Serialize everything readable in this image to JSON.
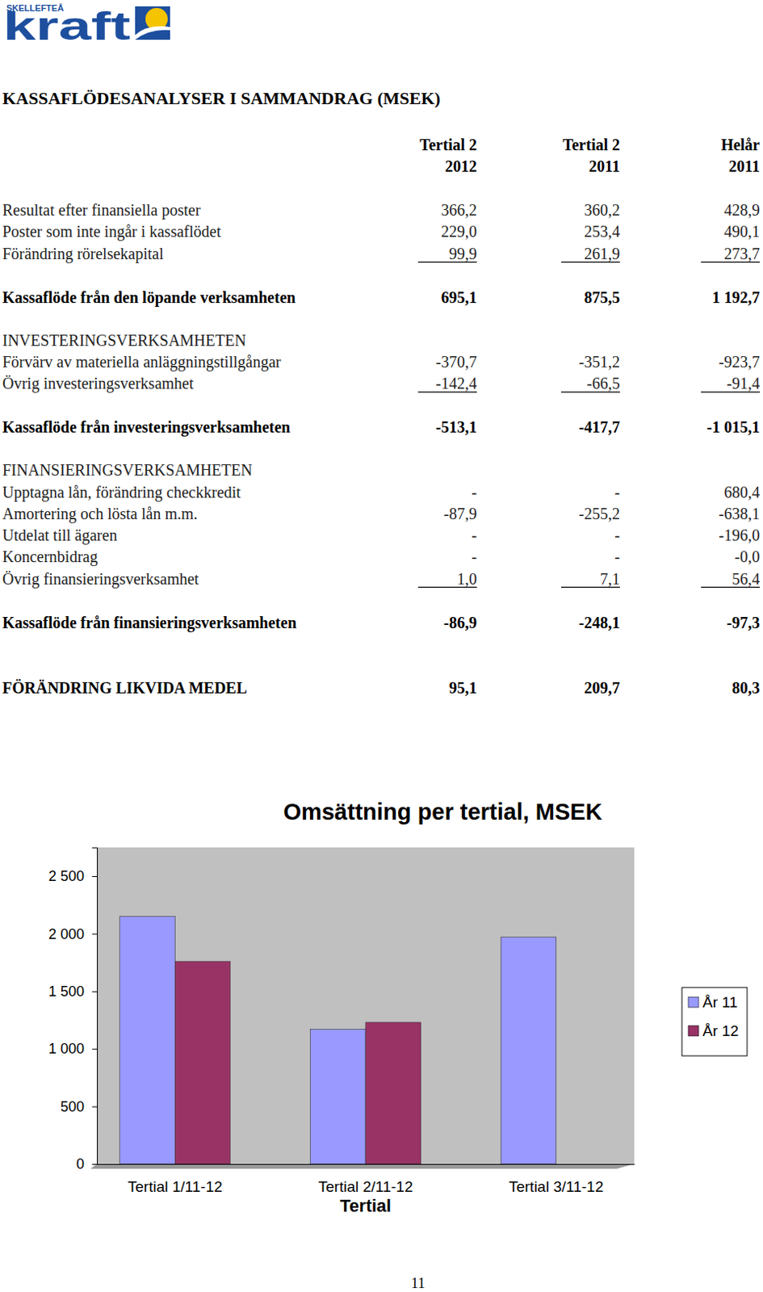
{
  "header": {
    "logo_small": "SKELLEFTEÅ",
    "logo_large": "kraft"
  },
  "table": {
    "title": "KASSAFLÖDESANALYSER I SAMMANDRAG (MSEK)",
    "columns": [
      [
        "Tertial 2",
        "2012"
      ],
      [
        "Tertial 2",
        "2011"
      ],
      [
        "Helår",
        "2011"
      ]
    ],
    "sections": [
      {
        "items": [
          {
            "label": "Resultat efter finansiella poster",
            "values": [
              "366,2",
              "360,2",
              "428,9"
            ]
          },
          {
            "label": "Poster som inte ingår i kassaflödet",
            "values": [
              "229,0",
              "253,4",
              "490,1"
            ]
          },
          {
            "label": "Förändring rörelsekapital",
            "values": [
              "99,9",
              "261,9",
              "273,7"
            ]
          }
        ],
        "total": {
          "label": "Kassaflöde från den löpande verksamheten",
          "values": [
            "695,1",
            "875,5",
            "1 192,7"
          ]
        }
      },
      {
        "heading": "INVESTERINGSVERKSAMHETEN",
        "items": [
          {
            "label": "Förvärv av materiella anläggningstillgångar",
            "values": [
              "-370,7",
              "-351,2",
              "-923,7"
            ]
          },
          {
            "label": "Övrig investeringsverksamhet",
            "values": [
              "-142,4",
              "-66,5",
              "-91,4"
            ]
          }
        ],
        "total": {
          "label": "Kassaflöde från investeringsverksamheten",
          "values": [
            "-513,1",
            "-417,7",
            "-1 015,1"
          ]
        }
      },
      {
        "heading": "FINANSIERINGSVERKSAMHETEN",
        "items": [
          {
            "label": "Upptagna lån, förändring checkkredit",
            "values": [
              "-",
              "-",
              "680,4"
            ]
          },
          {
            "label": "Amortering och lösta lån m.m.",
            "values": [
              "-87,9",
              "-255,2",
              "-638,1"
            ]
          },
          {
            "label": "Utdelat till ägaren",
            "values": [
              "-",
              "-",
              "-196,0"
            ]
          },
          {
            "label": "Koncernbidrag",
            "values": [
              "-",
              "-",
              "-0,0"
            ]
          },
          {
            "label": "Övrig finansieringsverksamhet",
            "values": [
              "1,0",
              "7,1",
              "56,4"
            ]
          }
        ],
        "total": {
          "label": "Kassaflöde från finansieringsverksamheten",
          "values": [
            "-86,9",
            "-248,1",
            "-97,3"
          ]
        }
      }
    ],
    "result": {
      "label": "FÖRÄNDRING LIKVIDA MEDEL",
      "values": [
        "95,1",
        "209,7",
        "80,3"
      ]
    }
  },
  "chart_data": {
    "type": "bar",
    "title": "Omsättning per tertial, MSEK",
    "x_label": "Tertial",
    "categories": [
      "Tertial 1/11-12",
      "Tertial 2/11-12",
      "Tertial 3/11-12"
    ],
    "series": [
      {
        "name": "År 11",
        "color": "#9999ff",
        "values": [
          2150,
          1170,
          1970
        ]
      },
      {
        "name": "År 12",
        "color": "#993366",
        "values": [
          1760,
          1230,
          null
        ]
      }
    ],
    "ylim": [
      0,
      2750
    ],
    "yticks": [
      0,
      500,
      {
        "value": 1000,
        "label": "1 000"
      },
      {
        "value": 1500,
        "label": "1 500"
      },
      {
        "value": 2000,
        "label": "2 000"
      },
      {
        "value": 2500,
        "label": "2 500"
      }
    ],
    "grid": false,
    "legend": "right"
  },
  "footer": {
    "page": "11"
  }
}
